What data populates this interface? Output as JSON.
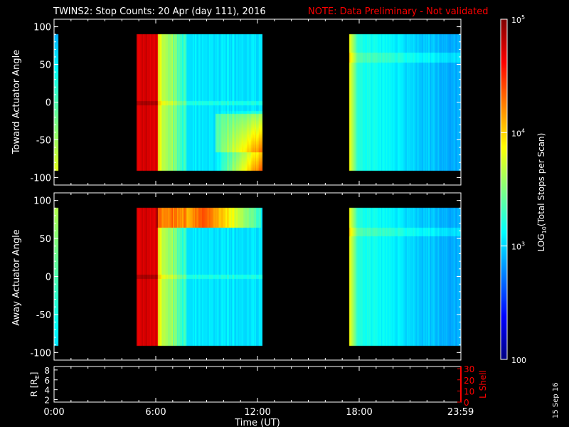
{
  "header": {
    "title": "TWINS2: Stop Counts: 20 Apr (day 111), 2016",
    "note": "NOTE: Data Preliminary - Not validated"
  },
  "stamp": "15 Sep 16",
  "colors": {
    "background": "#000000",
    "text": "#ffffff",
    "note": "#ff0000",
    "lshell": "#ff0000",
    "axis": "#ffffff"
  },
  "chart_data": [
    {
      "type": "heatmap",
      "panel": "top",
      "ylabel": "Toward Actuator Angle",
      "ylim": [
        -110,
        110
      ],
      "yticks": [
        "100",
        "50",
        "0",
        "-50",
        "-100"
      ],
      "ytick_values": [
        100,
        50,
        0,
        -50,
        -100
      ],
      "data_ylim": [
        -90,
        90
      ],
      "xlim_hours": [
        0,
        24
      ],
      "coverage_hours": [
        [
          0,
          0.25
        ],
        [
          4.85,
          12.3
        ],
        [
          17.4,
          24
        ]
      ],
      "zscale": "log"
    },
    {
      "type": "heatmap",
      "panel": "middle",
      "ylabel": "Away Actuator Angle",
      "ylim": [
        -110,
        110
      ],
      "yticks": [
        "100",
        "50",
        "0",
        "-50",
        "-100"
      ],
      "ytick_values": [
        100,
        50,
        0,
        -50,
        -100
      ],
      "data_ylim": [
        -90,
        90
      ],
      "xlim_hours": [
        0,
        24
      ],
      "coverage_hours": [
        [
          0,
          0.25
        ],
        [
          4.85,
          12.3
        ],
        [
          17.4,
          24
        ]
      ],
      "zscale": "log"
    },
    {
      "type": "line",
      "panel": "orbit",
      "ylabel": "R [R",
      "ylabel_sub": "E",
      "ylabel_close": "]",
      "yticks": [
        "8",
        "6",
        "4",
        "2"
      ],
      "ytick_values": [
        8,
        6,
        4,
        2
      ],
      "ylim": [
        1.5,
        8.7
      ],
      "y2label": "L Shell",
      "y2ticks": [
        "30",
        "20",
        "10",
        "0"
      ],
      "y2tick_values": [
        30,
        20,
        10,
        0
      ],
      "y2lim": [
        0,
        32
      ],
      "xlabel": "Time (UT)",
      "xticks": [
        "0:00",
        "6:00",
        "12:00",
        "18:00",
        "23:59"
      ],
      "xtick_hours": [
        0,
        6,
        12,
        18,
        23.983
      ],
      "series": []
    }
  ],
  "colorbar": {
    "label_prefix": "LOG",
    "label_sub": "10",
    "label_suffix": "(Total Stops per Scan)",
    "ticks": [
      {
        "base": "10",
        "exp": "5",
        "value": 100000
      },
      {
        "base": "10",
        "exp": "4",
        "value": 10000
      },
      {
        "base": "10",
        "exp": "3",
        "value": 1000
      },
      {
        "base": "100",
        "exp": "",
        "value": 100
      }
    ],
    "range": [
      100,
      100000
    ],
    "scale": "log"
  }
}
